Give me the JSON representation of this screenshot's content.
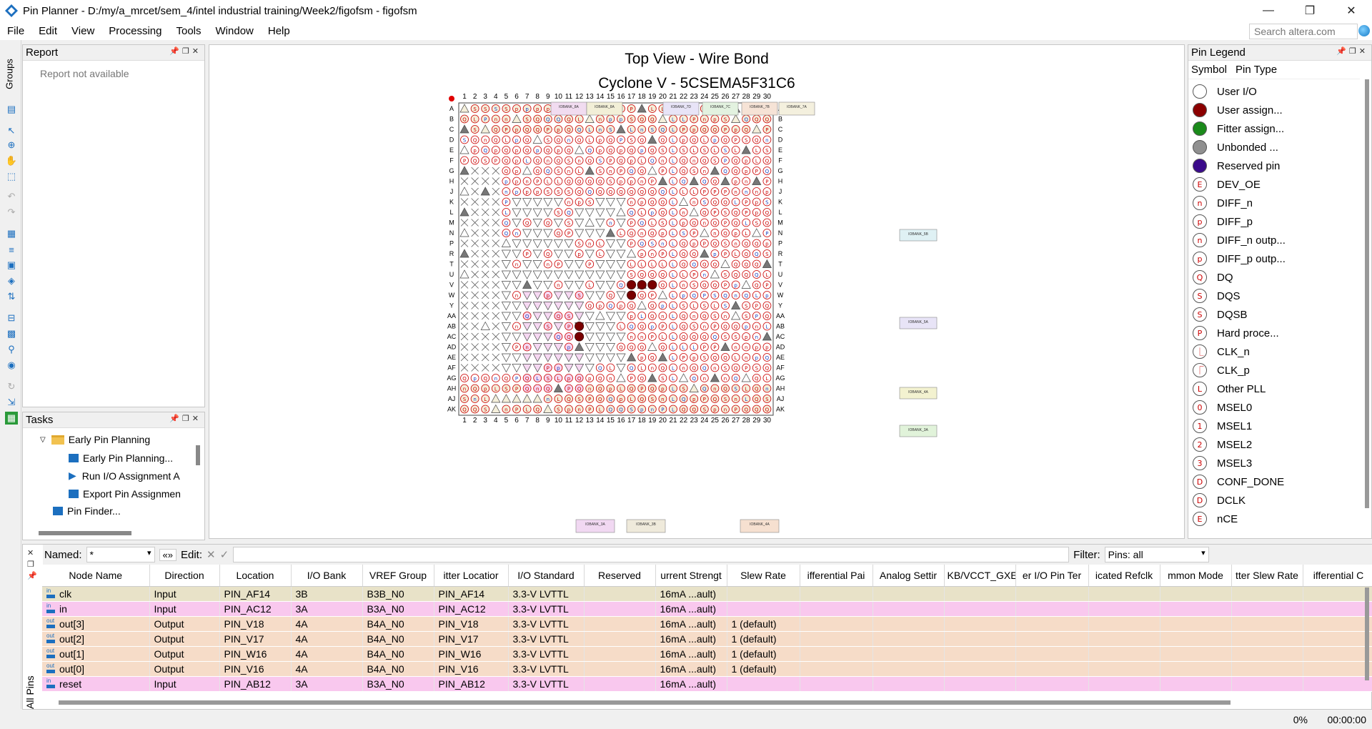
{
  "window": {
    "title": "Pin Planner - D:/my/a_mrcet/sem_4/intel industrial training/Week2/figofsm - figofsm",
    "minimize": "—",
    "restore": "❐",
    "close": "✕"
  },
  "menu": [
    "File",
    "Edit",
    "View",
    "Processing",
    "Tools",
    "Window",
    "Help"
  ],
  "search": {
    "placeholder": "Search altera.com"
  },
  "groups_label": "Groups",
  "report": {
    "title": "Report",
    "text": "Report not available"
  },
  "tasks": {
    "title": "Tasks",
    "items": [
      "Early Pin Planning",
      "Early Pin Planning...",
      "Run I/O Assignment A",
      "Export Pin Assignmen",
      "Pin Finder..."
    ]
  },
  "package": {
    "title": "Top View - Wire Bond",
    "device": "Cyclone V - 5CSEMA5F31C6",
    "columns": [
      "1",
      "2",
      "3",
      "4",
      "5",
      "6",
      "7",
      "8",
      "9",
      "10",
      "11",
      "12",
      "13",
      "14",
      "15",
      "16",
      "17",
      "18",
      "19",
      "20",
      "21",
      "22",
      "23",
      "24",
      "25",
      "26",
      "27",
      "28",
      "29",
      "30"
    ],
    "rows": [
      "A",
      "B",
      "C",
      "D",
      "E",
      "F",
      "G",
      "H",
      "J",
      "K",
      "L",
      "M",
      "N",
      "P",
      "R",
      "T",
      "U",
      "V",
      "W",
      "Y",
      "AA",
      "AB",
      "AC",
      "AD",
      "AE",
      "AF",
      "AG",
      "AH",
      "AJ",
      "AK"
    ],
    "top_banks": [
      "IOBANK_8A",
      "IOBANK_8A",
      "IOBANK_7D",
      "IOBANK_7C",
      "IOBANK_7B",
      "IOBANK_7A"
    ],
    "right_banks": [
      "IOBANK_5B",
      "IOBANK_5A",
      "IOBANK_4A",
      "IOBANK_3A"
    ],
    "bottom_banks": [
      "IOBANK_3A",
      "IOBANK_3B",
      "IOBANK_4A"
    ]
  },
  "legend": {
    "title": "Pin Legend",
    "col_symbol": "Symbol",
    "col_type": "Pin Type",
    "items": [
      {
        "sym": "",
        "label": "User I/O",
        "fill": "#ffffff"
      },
      {
        "sym": "",
        "label": "User assign...",
        "fill": "#8b0000"
      },
      {
        "sym": "",
        "label": "Fitter assign...",
        "fill": "#1a8a1a"
      },
      {
        "sym": "",
        "label": "Unbonded ...",
        "fill": "#909090"
      },
      {
        "sym": "",
        "label": "Reserved pin",
        "fill": "#3a0a8a"
      },
      {
        "sym": "E",
        "label": "DEV_OE",
        "fill": "#ffffff"
      },
      {
        "sym": "n",
        "label": "DIFF_n",
        "fill": "#ffffff"
      },
      {
        "sym": "p",
        "label": "DIFF_p",
        "fill": "#ffffff"
      },
      {
        "sym": "n",
        "label": "DIFF_n outp...",
        "fill": "#ffffff"
      },
      {
        "sym": "p",
        "label": "DIFF_p outp...",
        "fill": "#ffffff"
      },
      {
        "sym": "Q",
        "label": "DQ",
        "fill": "#ffffff"
      },
      {
        "sym": "S",
        "label": "DQS",
        "fill": "#ffffff"
      },
      {
        "sym": "S",
        "label": "DQSB",
        "fill": "#ffffff"
      },
      {
        "sym": "P",
        "label": "Hard proce...",
        "fill": "#ffffff"
      },
      {
        "sym": "⎿",
        "label": "CLK_n",
        "fill": "#ffffff"
      },
      {
        "sym": "⎾",
        "label": "CLK_p",
        "fill": "#ffffff"
      },
      {
        "sym": "L",
        "label": "Other PLL",
        "fill": "#ffffff"
      },
      {
        "sym": "0",
        "label": "MSEL0",
        "fill": "#ffffff"
      },
      {
        "sym": "1",
        "label": "MSEL1",
        "fill": "#ffffff"
      },
      {
        "sym": "2",
        "label": "MSEL2",
        "fill": "#ffffff"
      },
      {
        "sym": "3",
        "label": "MSEL3",
        "fill": "#ffffff"
      },
      {
        "sym": "D",
        "label": "CONF_DONE",
        "fill": "#ffffff"
      },
      {
        "sym": "D",
        "label": "DCLK",
        "fill": "#ffffff"
      },
      {
        "sym": "E",
        "label": "nCE",
        "fill": "#ffffff"
      }
    ]
  },
  "filterbar": {
    "named_label": "Named:",
    "named_value": "*",
    "edit_label": "Edit:",
    "filter_label": "Filter:",
    "filter_value": "Pins: all"
  },
  "all_pins_label": "All Pins",
  "table": {
    "headers": [
      "Node Name",
      "Direction",
      "Location",
      "I/O Bank",
      "VREF Group",
      "Fitter Location",
      "I/O Standard",
      "Reserved",
      "Current Strength",
      "Slew Rate",
      "Differential Pair",
      "Analog Settings",
      "CCB/VCCT_GXB",
      "Fitter I/O Pin Ter",
      "Dedicated Refclk",
      "Common Mode",
      "Fitter Slew Rate",
      "Differential C"
    ],
    "header_display": [
      "Node Name",
      "Direction",
      "Location",
      "I/O Bank",
      "VREF Group",
      "itter Locatior",
      "I/O Standard",
      "Reserved",
      "urrent Strengt",
      "Slew Rate",
      "ifferential Pai",
      "Analog Settir",
      "KB/VCCT_GXE",
      "er I/O Pin Ter",
      "icated Refclk",
      "mmon Mode",
      "tter Slew Rate",
      "ifferential C"
    ],
    "rows": [
      {
        "io": "in",
        "name": "clk",
        "dir": "Input",
        "loc": "PIN_AF14",
        "bank": "3B",
        "vref": "B3B_N0",
        "floc": "PIN_AF14",
        "std": "3.3-V LVTTL",
        "cur": "16mA ...ault)",
        "slew": ""
      },
      {
        "io": "in",
        "name": "in",
        "dir": "Input",
        "loc": "PIN_AC12",
        "bank": "3A",
        "vref": "B3A_N0",
        "floc": "PIN_AC12",
        "std": "3.3-V LVTTL",
        "cur": "16mA ...ault)",
        "slew": ""
      },
      {
        "io": "out",
        "name": "out[3]",
        "dir": "Output",
        "loc": "PIN_V18",
        "bank": "4A",
        "vref": "B4A_N0",
        "floc": "PIN_V18",
        "std": "3.3-V LVTTL",
        "cur": "16mA ...ault)",
        "slew": "1 (default)"
      },
      {
        "io": "out",
        "name": "out[2]",
        "dir": "Output",
        "loc": "PIN_V17",
        "bank": "4A",
        "vref": "B4A_N0",
        "floc": "PIN_V17",
        "std": "3.3-V LVTTL",
        "cur": "16mA ...ault)",
        "slew": "1 (default)"
      },
      {
        "io": "out",
        "name": "out[1]",
        "dir": "Output",
        "loc": "PIN_W16",
        "bank": "4A",
        "vref": "B4A_N0",
        "floc": "PIN_W16",
        "std": "3.3-V LVTTL",
        "cur": "16mA ...ault)",
        "slew": "1 (default)"
      },
      {
        "io": "out",
        "name": "out[0]",
        "dir": "Output",
        "loc": "PIN_V16",
        "bank": "4A",
        "vref": "B4A_N0",
        "floc": "PIN_V16",
        "std": "3.3-V LVTTL",
        "cur": "16mA ...ault)",
        "slew": "1 (default)"
      },
      {
        "io": "in",
        "name": "reset",
        "dir": "Input",
        "loc": "PIN_AB12",
        "bank": "3A",
        "vref": "B3A_N0",
        "floc": "PIN_AB12",
        "std": "3.3-V LVTTL",
        "cur": "16mA ...ault)",
        "slew": ""
      }
    ]
  },
  "status": {
    "progress": "0%",
    "time": "00:00:00"
  }
}
